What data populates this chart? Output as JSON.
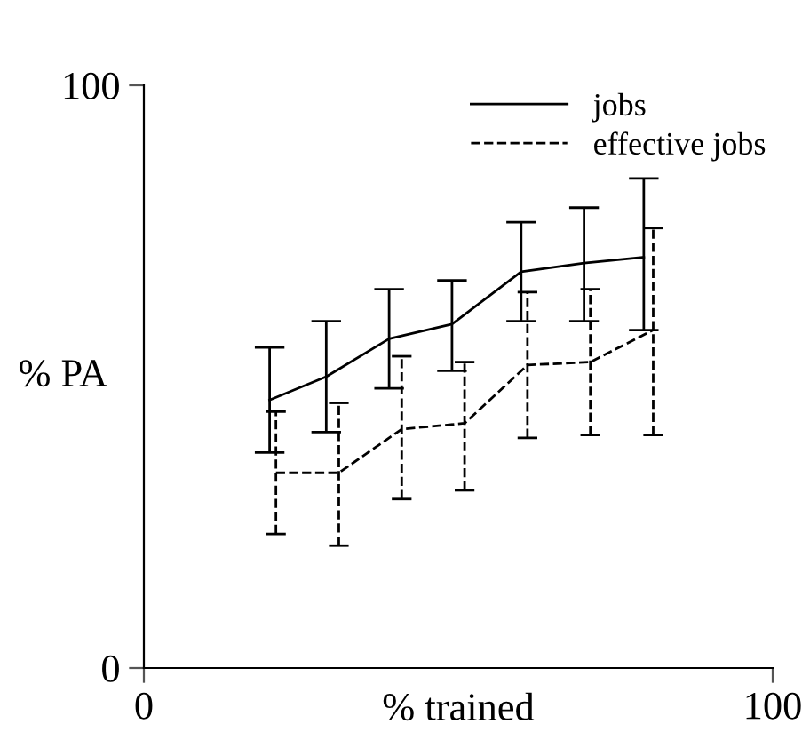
{
  "chart_data": {
    "type": "line",
    "xlabel": "% trained",
    "ylabel": "% PA",
    "xlim": [
      0,
      100
    ],
    "ylim": [
      0,
      100
    ],
    "xticks": [
      0,
      100
    ],
    "yticks": [
      0,
      100
    ],
    "grid": false,
    "legend": "top right",
    "marker": "none",
    "series": [
      {
        "name": "jobs",
        "color": "#000000",
        "line_style": "solid",
        "x": [
          20,
          29,
          39,
          49,
          60,
          70,
          79.5
        ],
        "values": [
          46,
          50,
          56.5,
          59,
          68,
          69.5,
          70.5
        ],
        "errors": [
          [
            37,
            55
          ],
          [
            40.5,
            59.5
          ],
          [
            48,
            65
          ],
          [
            51,
            66.5
          ],
          [
            59.5,
            76.5
          ],
          [
            59.5,
            79
          ],
          [
            58,
            84
          ]
        ]
      },
      {
        "name": "effective jobs",
        "color": "#000000",
        "line_style": "dashed",
        "x": [
          21,
          31,
          41,
          51,
          61,
          71,
          81
        ],
        "values": [
          33.5,
          33.5,
          41,
          42,
          52,
          52.5,
          58
        ],
        "errors": [
          [
            23,
            44
          ],
          [
            21,
            45.5
          ],
          [
            29,
            53.5
          ],
          [
            30.5,
            52.5
          ],
          [
            39.5,
            64.5
          ],
          [
            40,
            65
          ],
          [
            40,
            75.5
          ]
        ]
      }
    ]
  }
}
